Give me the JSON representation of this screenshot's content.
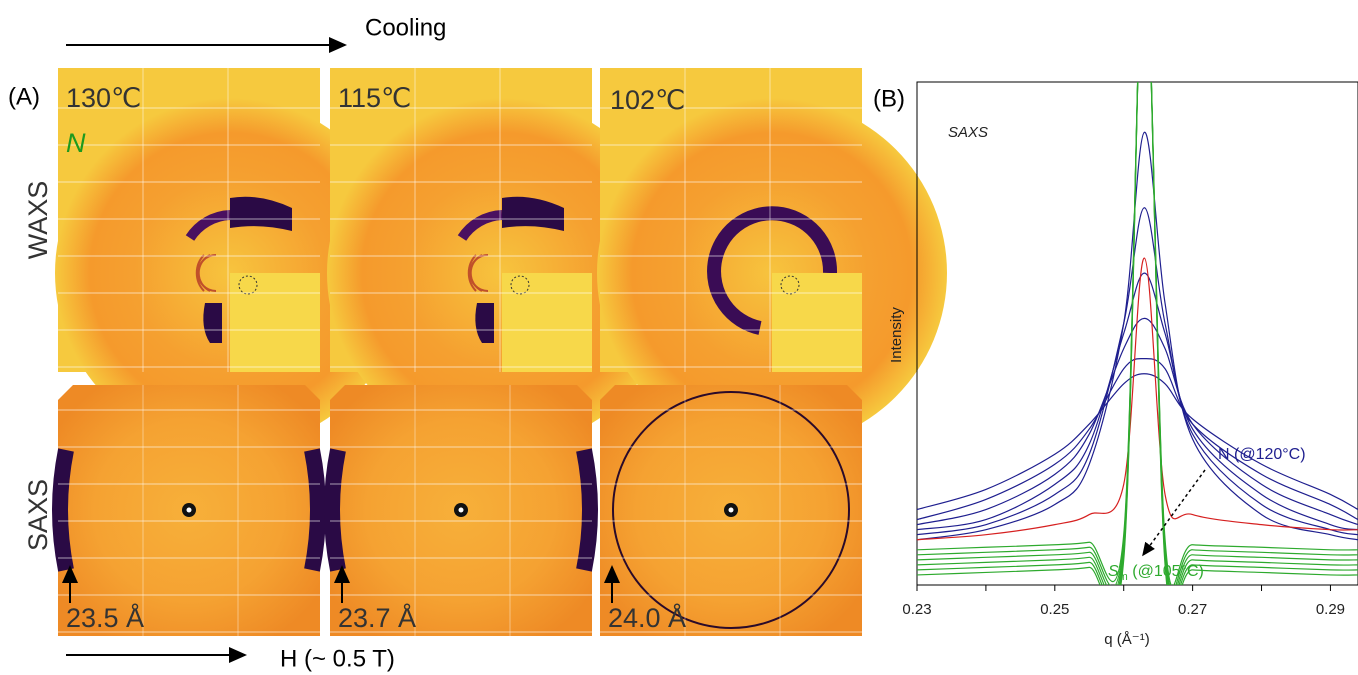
{
  "panel_a": {
    "label": "(A)",
    "cooling": "Cooling",
    "field": "H (~ 0.5 T)",
    "row_labels": [
      "WAXS",
      "SAXS"
    ],
    "temperatures": [
      "130℃",
      "115℃",
      "102℃"
    ],
    "phase": "N",
    "spacings": [
      "23.5 Å",
      "23.7 Å",
      "24.0 Å"
    ]
  },
  "chart_data": {
    "type": "line",
    "label": "(B)",
    "title": "SAXS",
    "x_label": "q (Å⁻¹)",
    "y_label": "Intensity",
    "x": [
      0.23,
      0.24,
      0.25,
      0.255,
      0.26,
      0.263,
      0.266,
      0.27,
      0.28,
      0.29,
      0.294
    ],
    "xlim": [
      0.23,
      0.294
    ],
    "ylim": [
      0,
      100
    ],
    "xticks": [
      0.23,
      0.25,
      0.27,
      0.29
    ],
    "xminor": [
      0.24,
      0.26,
      0.28
    ],
    "series": [
      {
        "color": "#1f1f8f",
        "values": [
          9,
          11,
          16,
          24,
          52,
          90,
          56,
          29,
          14,
          10,
          9
        ]
      },
      {
        "color": "#1f1f8f",
        "values": [
          10,
          12,
          18,
          26,
          52,
          75,
          52,
          30,
          16,
          11,
          10
        ]
      },
      {
        "color": "#1f1f8f",
        "values": [
          11,
          13,
          20,
          28,
          50,
          62,
          50,
          31,
          18,
          12,
          11
        ]
      },
      {
        "color": "#1f1f8f",
        "values": [
          12,
          15,
          22,
          30,
          47,
          53,
          47,
          32,
          20,
          14,
          12
        ]
      },
      {
        "color": "#1f1f8f",
        "values": [
          13,
          17,
          24,
          31,
          43,
          45,
          43,
          32,
          22,
          16,
          13
        ]
      },
      {
        "color": "#1f1f8f",
        "values": [
          15,
          19,
          26,
          32,
          40,
          42,
          40,
          33,
          24,
          18,
          15
        ]
      },
      {
        "color": "#d62020",
        "values": [
          9,
          10,
          12,
          14,
          20,
          65,
          18,
          14,
          12,
          11,
          11
        ]
      },
      {
        "color": "#2eaa2e",
        "values": [
          7,
          7.5,
          8,
          8.5,
          10,
          130,
          9,
          8,
          7.5,
          7,
          7
        ]
      },
      {
        "color": "#2eaa2e",
        "values": [
          6,
          6.5,
          7,
          7.5,
          9,
          130,
          8,
          7,
          6.5,
          6,
          6
        ]
      },
      {
        "color": "#2eaa2e",
        "values": [
          5,
          5.5,
          6,
          6.5,
          8,
          130,
          7,
          6,
          5.5,
          5,
          5
        ]
      },
      {
        "color": "#2eaa2e",
        "values": [
          4,
          4.5,
          5,
          5.5,
          7,
          130,
          6,
          5,
          4.5,
          4,
          4
        ]
      },
      {
        "color": "#2eaa2e",
        "values": [
          3,
          3.5,
          4,
          4.5,
          6,
          130,
          5,
          4,
          3.5,
          3,
          3
        ]
      },
      {
        "color": "#2eaa2e",
        "values": [
          2,
          2.5,
          3,
          3.5,
          5,
          130,
          4,
          3,
          2.5,
          2,
          2
        ]
      }
    ],
    "annotations": {
      "n_label": "N (@120°C)",
      "sm_symbol": "S",
      "sm_subscript": "m",
      "sm_text": " (@105°C)"
    }
  }
}
